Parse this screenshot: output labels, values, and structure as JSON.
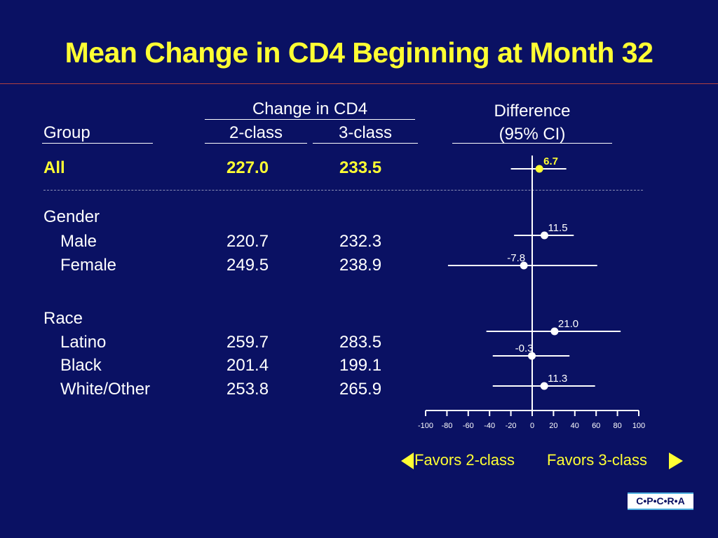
{
  "title": "Mean Change in CD4 Beginning at Month 32",
  "headers": {
    "group": "Group",
    "change": "Change in CD4",
    "class2": "2-class",
    "class3": "3-class",
    "difference_line1": "Difference",
    "difference_line2": "(95% CI)"
  },
  "rows": {
    "all": {
      "label": "All",
      "class2": "227.0",
      "class3": "233.5"
    },
    "gender": {
      "label": "Gender"
    },
    "male": {
      "label": "Male",
      "class2": "220.7",
      "class3": "232.3"
    },
    "female": {
      "label": "Female",
      "class2": "249.5",
      "class3": "238.9"
    },
    "race": {
      "label": "Race"
    },
    "latino": {
      "label": "Latino",
      "class2": "259.7",
      "class3": "283.5"
    },
    "black": {
      "label": "Black",
      "class2": "201.4",
      "class3": "199.1"
    },
    "white": {
      "label": "White/Other",
      "class2": "253.8",
      "class3": "265.9"
    }
  },
  "favors": {
    "left": "Favors 2-class",
    "right": "Favors 3-class"
  },
  "logo": "C•P•C•R•A",
  "colors": {
    "background": "#0a1163",
    "title": "#ffff33",
    "text": "#ffffff"
  },
  "chart_data": {
    "type": "forest",
    "title": "",
    "xlabel": "",
    "ylabel": "",
    "xlim": [
      -100,
      100
    ],
    "xticks": [
      -100,
      -80,
      -60,
      -40,
      -20,
      0,
      20,
      40,
      60,
      80,
      100
    ],
    "reference_line": 0,
    "points": [
      {
        "group": "All",
        "estimate": 6.7,
        "ci": [
          -20,
          32
        ],
        "label": "6.7",
        "highlight": true
      },
      {
        "group": "Male",
        "estimate": 11.5,
        "ci": [
          -17,
          39
        ],
        "label": "11.5"
      },
      {
        "group": "Female",
        "estimate": -7.8,
        "ci": [
          -79,
          61
        ],
        "label": "-7.8"
      },
      {
        "group": "Latino",
        "estimate": 21.0,
        "ci": [
          -43,
          83
        ],
        "label": "21.0"
      },
      {
        "group": "Black",
        "estimate": -0.3,
        "ci": [
          -37,
          35
        ],
        "label": "-0.3"
      },
      {
        "group": "White/Other",
        "estimate": 11.3,
        "ci": [
          -37,
          59
        ],
        "label": "11.3"
      }
    ]
  }
}
